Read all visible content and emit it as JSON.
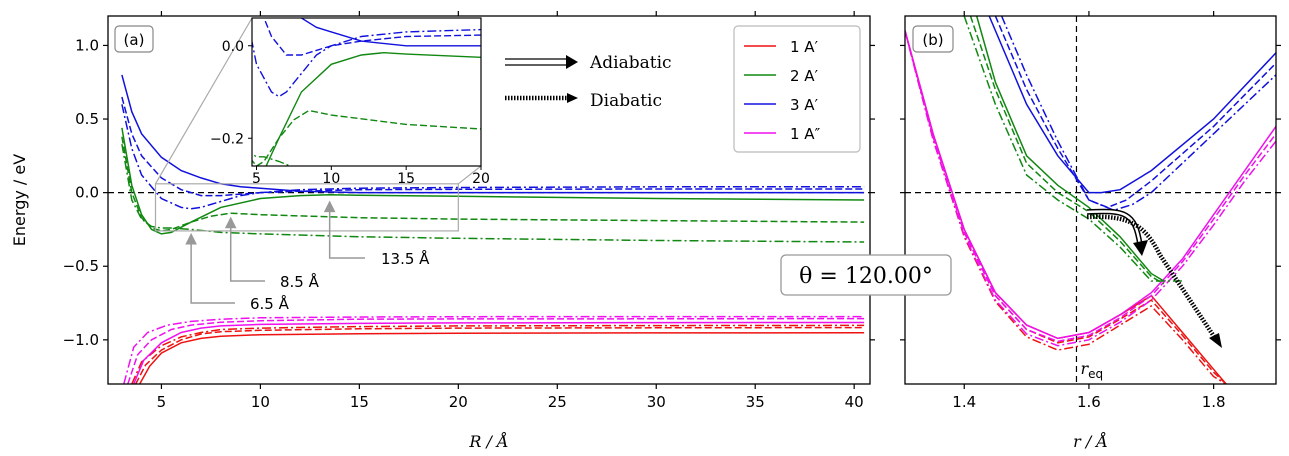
{
  "chart_data": [
    {
      "panel_label": "(a)",
      "type": "line",
      "xlabel": "R / Å",
      "ylabel": "Energy / eV",
      "xlim": [
        2.3,
        40.8
      ],
      "ylim": [
        -1.3,
        1.2
      ],
      "xticks": [
        5,
        10,
        15,
        20,
        25,
        30,
        35,
        40
      ],
      "yticks": [
        -1.0,
        -0.5,
        0.0,
        0.5,
        1.0
      ],
      "xtick_labels": [
        "5",
        "10",
        "15",
        "20",
        "25",
        "30",
        "35",
        "40"
      ],
      "ytick_labels": [
        "−1.0",
        "−0.5",
        "0.0",
        "0.5",
        "1.0"
      ],
      "series": [
        {
          "name": "1 A′",
          "color": "#ee1111",
          "style": "solid",
          "x": [
            3.9,
            4.4,
            5,
            6,
            7,
            8,
            10,
            15,
            20,
            30,
            40.5
          ],
          "y": [
            -1.3,
            -1.18,
            -1.09,
            -1.02,
            -0.99,
            -0.975,
            -0.965,
            -0.958,
            -0.955,
            -0.953,
            -0.952
          ]
        },
        {
          "name": "",
          "color": "#ee1111",
          "style": "dashed",
          "x": [
            3.7,
            4.2,
            5,
            6,
            7,
            8,
            10,
            15,
            20,
            30,
            40.5
          ],
          "y": [
            -1.3,
            -1.17,
            -1.07,
            -1.0,
            -0.96,
            -0.945,
            -0.935,
            -0.925,
            -0.92,
            -0.918,
            -0.917
          ]
        },
        {
          "name": "",
          "color": "#ee1111",
          "style": "dashdot",
          "x": [
            3.5,
            4.0,
            5,
            6,
            7,
            8,
            10,
            15,
            20,
            30,
            40.5
          ],
          "y": [
            -1.3,
            -1.15,
            -1.04,
            -0.98,
            -0.95,
            -0.93,
            -0.92,
            -0.91,
            -0.905,
            -0.903,
            -0.902
          ]
        },
        {
          "name": "1 A″",
          "color": "#ee11ee",
          "style": "solid",
          "x": [
            3.6,
            4.1,
            5,
            6,
            7,
            8,
            10,
            15,
            20,
            30,
            40.5
          ],
          "y": [
            -1.3,
            -1.14,
            -1.02,
            -0.95,
            -0.92,
            -0.905,
            -0.895,
            -0.888,
            -0.885,
            -0.883,
            -0.882
          ]
        },
        {
          "name": "",
          "color": "#ee11ee",
          "style": "dashed",
          "x": [
            3.3,
            3.8,
            4.5,
            5.5,
            6.5,
            8,
            10,
            15,
            20,
            30,
            40.5
          ],
          "y": [
            -1.3,
            -1.1,
            -1.0,
            -0.93,
            -0.9,
            -0.88,
            -0.87,
            -0.86,
            -0.858,
            -0.857,
            -0.856
          ]
        },
        {
          "name": "",
          "color": "#ee11ee",
          "style": "dashdot",
          "x": [
            3.1,
            3.6,
            4.3,
            5.3,
            6.5,
            8,
            10,
            15,
            20,
            30,
            40.5
          ],
          "y": [
            -1.3,
            -1.05,
            -0.95,
            -0.9,
            -0.875,
            -0.86,
            -0.85,
            -0.845,
            -0.843,
            -0.842,
            -0.842
          ]
        },
        {
          "name": "2 A′",
          "color": "#118811",
          "style": "solid",
          "x": [
            3.0,
            3.5,
            4.0,
            4.5,
            5.0,
            5.5,
            6.5,
            8,
            10,
            12,
            13.5,
            15,
            20,
            30,
            40.5
          ],
          "y": [
            0.44,
            0.05,
            -0.15,
            -0.25,
            -0.28,
            -0.27,
            -0.2,
            -0.1,
            -0.04,
            -0.02,
            -0.015,
            -0.018,
            -0.025,
            -0.04,
            -0.05
          ]
        },
        {
          "name": "",
          "color": "#118811",
          "style": "dashed",
          "x": [
            3.0,
            3.5,
            4.0,
            4.5,
            5.0,
            5.5,
            6.5,
            7.5,
            8.5,
            10,
            15,
            20,
            30,
            40.5
          ],
          "y": [
            0.38,
            0.0,
            -0.17,
            -0.24,
            -0.26,
            -0.25,
            -0.2,
            -0.16,
            -0.14,
            -0.15,
            -0.17,
            -0.18,
            -0.19,
            -0.2
          ]
        },
        {
          "name": "",
          "color": "#118811",
          "style": "dashdot",
          "x": [
            3.0,
            3.5,
            4.0,
            4.5,
            5.0,
            5.5,
            6.5,
            8,
            10,
            15,
            20,
            30,
            40.5
          ],
          "y": [
            0.33,
            -0.05,
            -0.18,
            -0.23,
            -0.24,
            -0.24,
            -0.25,
            -0.27,
            -0.28,
            -0.3,
            -0.31,
            -0.325,
            -0.335
          ]
        },
        {
          "name": "3 A′",
          "color": "#1111dd",
          "style": "solid",
          "x": [
            3.0,
            3.5,
            4.0,
            5,
            6,
            7,
            8,
            9,
            10,
            12,
            15,
            20,
            30,
            40.5
          ],
          "y": [
            0.8,
            0.55,
            0.4,
            0.24,
            0.15,
            0.1,
            0.06,
            0.04,
            0.03,
            0.01,
            0.0,
            0.0,
            0.0,
            0.0
          ]
        },
        {
          "name": "",
          "color": "#1111dd",
          "style": "dashed",
          "x": [
            3.0,
            3.5,
            4.0,
            5,
            6,
            7,
            8,
            9,
            10,
            12,
            15,
            20,
            30,
            40.5
          ],
          "y": [
            0.65,
            0.4,
            0.25,
            0.1,
            0.02,
            -0.02,
            -0.02,
            -0.01,
            0.0,
            0.01,
            0.02,
            0.023,
            0.025,
            0.025
          ]
        },
        {
          "name": "",
          "color": "#1111dd",
          "style": "dashdot",
          "x": [
            3.0,
            3.5,
            4.0,
            5,
            6,
            6.5,
            7,
            8,
            9,
            10,
            12,
            15,
            20,
            30,
            40.5
          ],
          "y": [
            0.6,
            0.3,
            0.12,
            -0.04,
            -0.1,
            -0.11,
            -0.1,
            -0.06,
            -0.02,
            0.0,
            0.02,
            0.03,
            0.035,
            0.04,
            0.04
          ]
        }
      ],
      "hline": 0.0,
      "annotations": [
        {
          "text": "6.5 Å",
          "x": 6.5
        },
        {
          "text": "8.5 Å",
          "x": 8.5
        },
        {
          "text": "13.5 Å",
          "x": 13.5
        }
      ],
      "inset": {
        "xlim": [
          4.7,
          20
        ],
        "ylim": [
          -0.26,
          0.06
        ],
        "xticks": [
          5,
          10,
          15,
          20
        ],
        "yticks": [
          0.0,
          -0.2
        ],
        "xtick_labels": [
          "5",
          "10",
          "15",
          "20"
        ],
        "ytick_labels": [
          "0.0",
          "−0.2"
        ]
      },
      "arrow_legend": [
        {
          "label": "Adiabatic"
        },
        {
          "label": "Diabatic"
        }
      ],
      "theta_label": "θ = 120.00°"
    },
    {
      "panel_label": "(b)",
      "type": "line",
      "xlabel": "r / Å",
      "ylabel": "",
      "xlim": [
        1.305,
        1.9
      ],
      "ylim": [
        -1.3,
        1.2
      ],
      "xticks": [
        1.4,
        1.6,
        1.8
      ],
      "xtick_labels": [
        "1.4",
        "1.6",
        "1.8"
      ],
      "vline_label": "r_eq",
      "vline_x": 1.58,
      "series": [
        {
          "name": "",
          "color": "#ee1111",
          "style": "solid",
          "x": [
            1.305,
            1.35,
            1.4,
            1.45,
            1.5,
            1.55,
            1.6,
            1.65,
            1.7,
            1.75,
            1.8,
            1.82
          ],
          "y": [
            1.1,
            0.4,
            -0.25,
            -0.68,
            -0.9,
            -0.99,
            -0.95,
            -0.83,
            -0.7,
            -0.95,
            -1.2,
            -1.3
          ]
        },
        {
          "name": "",
          "color": "#ee1111",
          "style": "dashed",
          "x": [
            1.305,
            1.35,
            1.4,
            1.45,
            1.5,
            1.55,
            1.6,
            1.65,
            1.7,
            1.75,
            1.8,
            1.82
          ],
          "y": [
            1.1,
            0.38,
            -0.27,
            -0.7,
            -0.93,
            -1.02,
            -0.98,
            -0.86,
            -0.73,
            -0.97,
            -1.22,
            -1.3
          ]
        },
        {
          "name": "",
          "color": "#ee1111",
          "style": "dashdot",
          "x": [
            1.305,
            1.35,
            1.4,
            1.45,
            1.5,
            1.55,
            1.6,
            1.65,
            1.7,
            1.75,
            1.8,
            1.82
          ],
          "y": [
            1.1,
            0.36,
            -0.3,
            -0.74,
            -0.98,
            -1.07,
            -1.03,
            -0.9,
            -0.77,
            -1.0,
            -1.25,
            -1.3
          ]
        },
        {
          "name": "",
          "color": "#ee11ee",
          "style": "solid",
          "x": [
            1.305,
            1.35,
            1.4,
            1.45,
            1.5,
            1.55,
            1.6,
            1.65,
            1.7,
            1.75,
            1.8,
            1.85,
            1.9
          ],
          "y": [
            1.1,
            0.4,
            -0.25,
            -0.68,
            -0.9,
            -0.99,
            -0.95,
            -0.83,
            -0.68,
            -0.45,
            -0.15,
            0.15,
            0.45
          ]
        },
        {
          "name": "",
          "color": "#ee11ee",
          "style": "dashed",
          "x": [
            1.305,
            1.35,
            1.4,
            1.45,
            1.5,
            1.55,
            1.6,
            1.65,
            1.7,
            1.75,
            1.8,
            1.85,
            1.9
          ],
          "y": [
            1.1,
            0.38,
            -0.27,
            -0.7,
            -0.93,
            -1.01,
            -0.97,
            -0.85,
            -0.7,
            -0.47,
            -0.18,
            0.12,
            0.4
          ]
        },
        {
          "name": "",
          "color": "#ee11ee",
          "style": "dashdot",
          "x": [
            1.305,
            1.35,
            1.4,
            1.45,
            1.5,
            1.55,
            1.6,
            1.65,
            1.7,
            1.75,
            1.8,
            1.85,
            1.9
          ],
          "y": [
            1.1,
            0.36,
            -0.29,
            -0.73,
            -0.96,
            -1.04,
            -1.0,
            -0.88,
            -0.73,
            -0.5,
            -0.22,
            0.08,
            0.35
          ]
        },
        {
          "name": "",
          "color": "#118811",
          "style": "solid",
          "x": [
            1.42,
            1.45,
            1.5,
            1.55,
            1.6,
            1.65,
            1.7,
            1.72
          ],
          "y": [
            1.2,
            0.75,
            0.25,
            0.05,
            -0.1,
            -0.3,
            -0.55,
            -0.6
          ]
        },
        {
          "name": "",
          "color": "#118811",
          "style": "dashed",
          "x": [
            1.41,
            1.45,
            1.5,
            1.55,
            1.6,
            1.65,
            1.7,
            1.72
          ],
          "y": [
            1.2,
            0.7,
            0.2,
            0.0,
            -0.13,
            -0.33,
            -0.57,
            -0.62
          ]
        },
        {
          "name": "",
          "color": "#118811",
          "style": "dashdot",
          "x": [
            1.4,
            1.45,
            1.5,
            1.55,
            1.6,
            1.65,
            1.7,
            1.75
          ],
          "y": [
            1.2,
            0.6,
            0.12,
            -0.05,
            -0.18,
            -0.37,
            -0.6,
            -0.6
          ]
        },
        {
          "name": "",
          "color": "#1111dd",
          "style": "solid",
          "x": [
            1.44,
            1.5,
            1.55,
            1.6,
            1.62,
            1.65,
            1.7,
            1.8,
            1.9
          ],
          "y": [
            1.2,
            0.6,
            0.25,
            0.0,
            0.0,
            0.02,
            0.15,
            0.5,
            0.95
          ]
        },
        {
          "name": "",
          "color": "#1111dd",
          "style": "dashed",
          "x": [
            1.45,
            1.5,
            1.55,
            1.6,
            1.63,
            1.66,
            1.7,
            1.8,
            1.9
          ],
          "y": [
            1.2,
            0.7,
            0.3,
            -0.05,
            -0.1,
            -0.05,
            0.08,
            0.45,
            0.88
          ]
        },
        {
          "name": "",
          "color": "#1111dd",
          "style": "dashdot",
          "x": [
            1.46,
            1.5,
            1.55,
            1.6,
            1.64,
            1.67,
            1.7,
            1.8,
            1.9
          ],
          "y": [
            1.2,
            0.8,
            0.35,
            -0.05,
            -0.12,
            -0.08,
            0.0,
            0.4,
            0.8
          ]
        }
      ],
      "hline": 0.0
    }
  ],
  "legend": [
    {
      "label": "1 A′",
      "color": "#ee1111"
    },
    {
      "label": "2 A′",
      "color": "#118811"
    },
    {
      "label": "3 A′",
      "color": "#1111dd"
    },
    {
      "label": "1 A″",
      "color": "#ee11ee"
    }
  ]
}
